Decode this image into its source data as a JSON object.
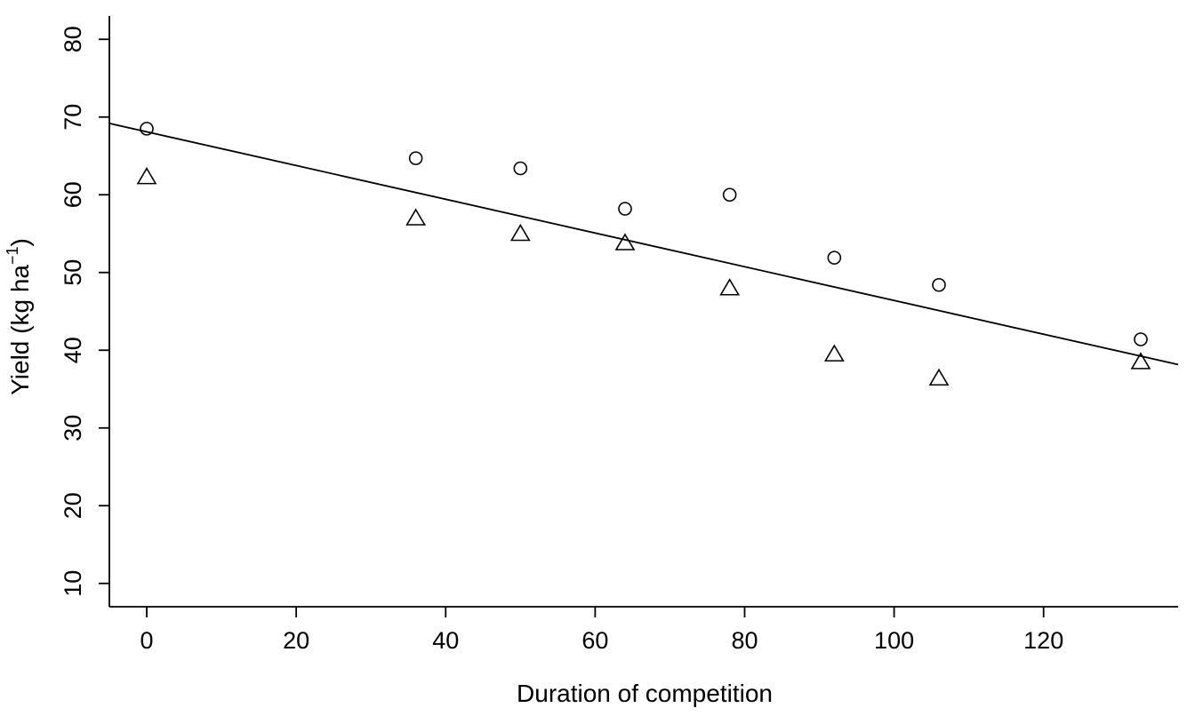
{
  "chart_data": {
    "type": "scatter",
    "title": "",
    "xlabel": "Duration of competition",
    "ylabel_main": "Yield (kg ha",
    "ylabel_sup": "−1",
    "ylabel_close": ")",
    "xlim": [
      -5,
      138
    ],
    "ylim": [
      7,
      83
    ],
    "xticks": [
      0,
      20,
      40,
      60,
      80,
      100,
      120
    ],
    "yticks": [
      10,
      20,
      30,
      40,
      50,
      60,
      70,
      80
    ],
    "grid": false,
    "series": [
      {
        "marker": "circle",
        "x": [
          0,
          36,
          50,
          64,
          78,
          92,
          106,
          133
        ],
        "y": [
          68.5,
          64.7,
          63.4,
          58.2,
          60.0,
          51.9,
          48.4,
          41.4
        ]
      },
      {
        "marker": "triangle",
        "x": [
          0,
          36,
          50,
          64,
          78,
          92,
          106,
          133
        ],
        "y": [
          62.3,
          57.0,
          55.0,
          53.8,
          48.0,
          39.5,
          36.4,
          38.5
        ]
      }
    ],
    "fit_line": {
      "intercept": 68.1,
      "slope": -0.217
    }
  }
}
